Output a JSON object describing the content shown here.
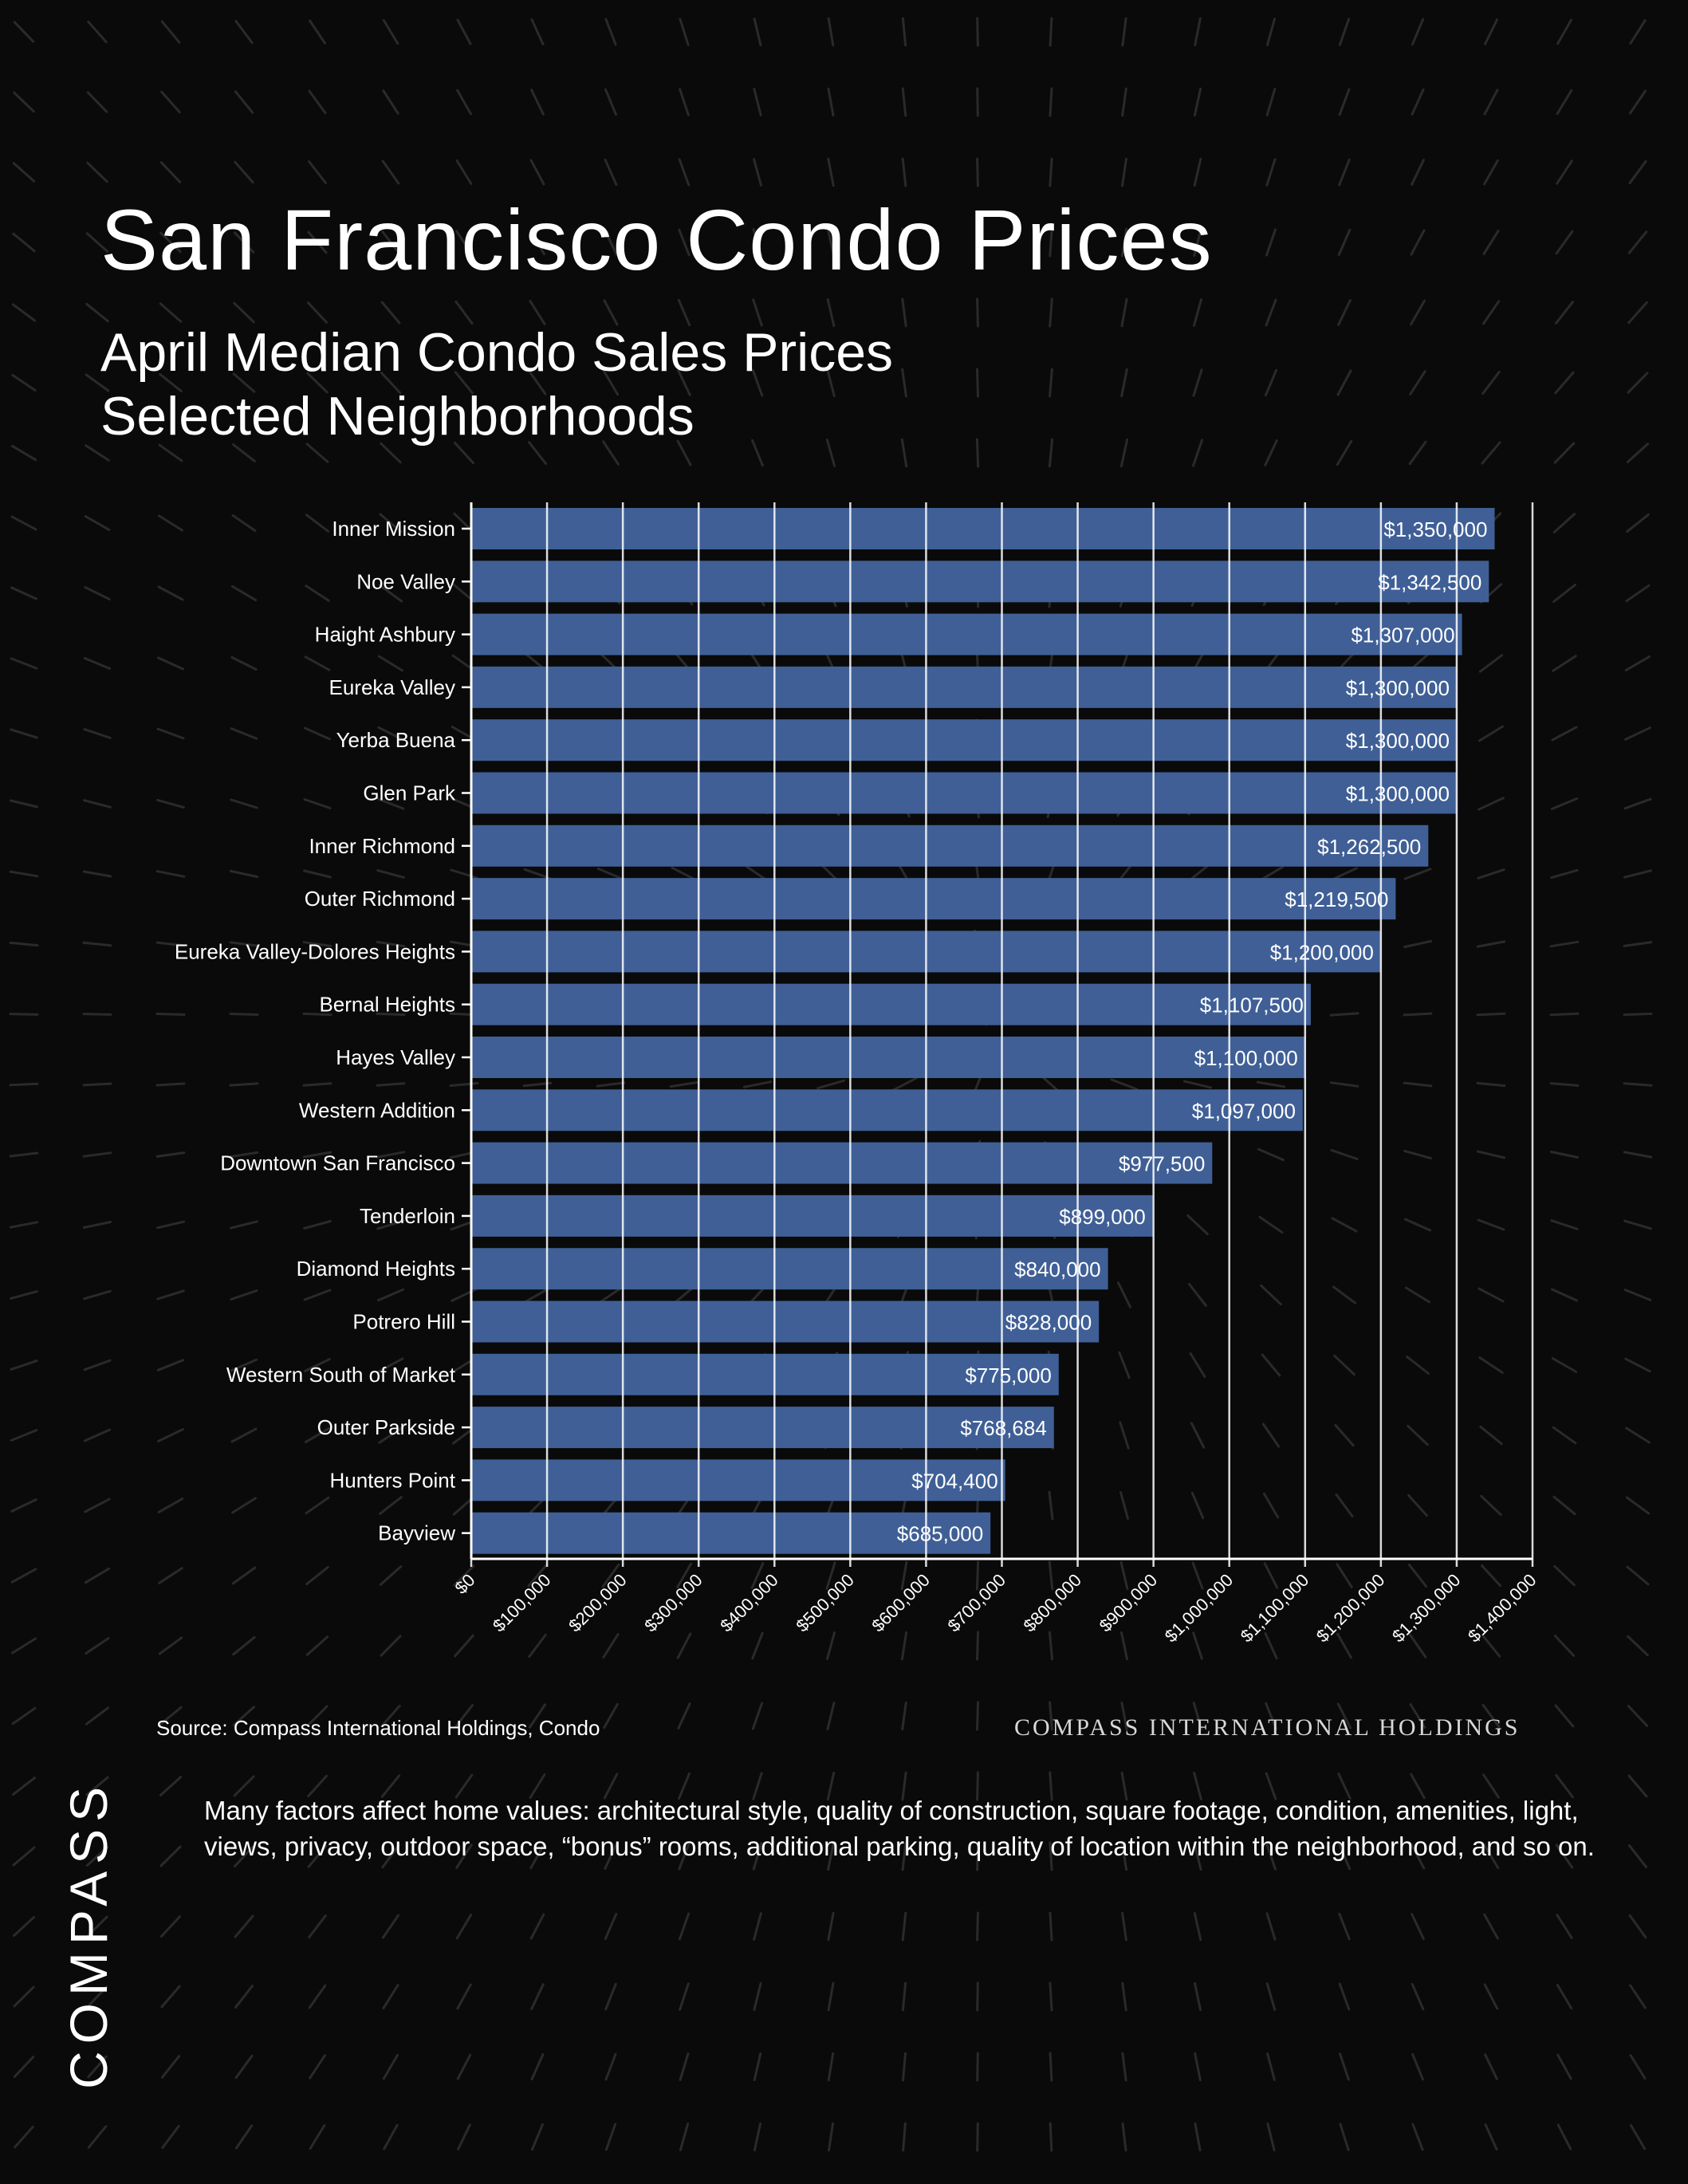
{
  "header": {
    "title": "San Francisco Condo Prices",
    "subtitle_line1": "April Median Condo Sales Prices",
    "subtitle_line2": "Selected Neighborhoods"
  },
  "colors": {
    "background": "#0a0a0a",
    "bar": "#3f5f96",
    "grid": "#ffffff",
    "text": "#ffffff"
  },
  "chart_data": {
    "type": "bar",
    "orientation": "horizontal",
    "categories": [
      "Inner Mission",
      "Noe Valley",
      "Haight Ashbury",
      "Eureka Valley",
      "Yerba Buena",
      "Glen Park",
      "Inner Richmond",
      "Outer Richmond",
      "Eureka Valley-Dolores Heights",
      "Bernal Heights",
      "Hayes Valley",
      "Western Addition",
      "Downtown San Francisco",
      "Tenderloin",
      "Diamond Heights",
      "Potrero Hill",
      "Western South of Market",
      "Outer Parkside",
      "Hunters Point",
      "Bayview"
    ],
    "values": [
      1350000,
      1342500,
      1307000,
      1300000,
      1300000,
      1300000,
      1262500,
      1219500,
      1200000,
      1107500,
      1100000,
      1097000,
      977500,
      899000,
      840000,
      828000,
      775000,
      768684,
      704400,
      685000
    ],
    "value_labels": [
      "$1,350,000",
      "$1,342,500",
      "$1,307,000",
      "$1,300,000",
      "$1,300,000",
      "$1,300,000",
      "$1,262,500",
      "$1,219,500",
      "$1,200,000",
      "$1,107,500",
      "$1,100,000",
      "$1,097,000",
      "$977,500",
      "$899,000",
      "$840,000",
      "$828,000",
      "$775,000",
      "$768,684",
      "$704,400",
      "$685,000"
    ],
    "xlim": [
      0,
      1400000
    ],
    "x_ticks": [
      0,
      100000,
      200000,
      300000,
      400000,
      500000,
      600000,
      700000,
      800000,
      900000,
      1000000,
      1100000,
      1200000,
      1300000,
      1400000
    ],
    "x_tick_labels": [
      "$0",
      "$100,000",
      "$200,000",
      "$300,000",
      "$400,000",
      "$500,000",
      "$600,000",
      "$700,000",
      "$800,000",
      "$900,000",
      "$1,000,000",
      "$1,100,000",
      "$1,200,000",
      "$1,300,000",
      "$1,400,000"
    ],
    "grid": true,
    "xlabel": "",
    "ylabel": ""
  },
  "footer": {
    "source": "Source: Compass International Holdings, Condo",
    "brand_text": "COMPASS INTERNATIONAL HOLDINGS",
    "disclaimer": "Many factors affect home values: architectural style, quality of construction, square footage, condition, amenities, light, views, privacy, outdoor space, “bonus” rooms, additional parking, quality of location within the neighborhood, and so on.",
    "logo": "COMPASS"
  }
}
